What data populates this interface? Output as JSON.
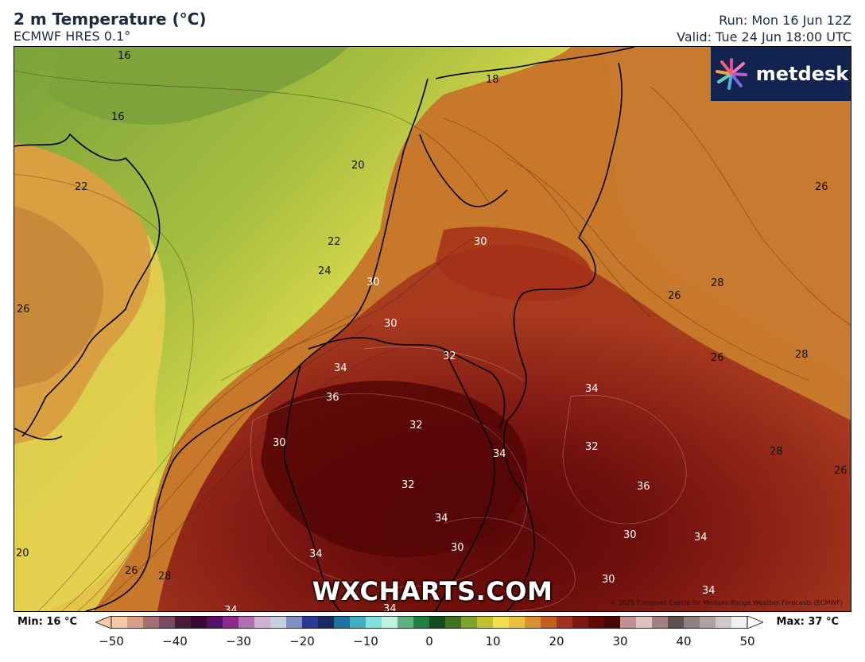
{
  "header": {
    "title": "2 m Temperature (°C)",
    "subtitle": "ECMWF HRES 0.1°",
    "run": "Run: Mon 16 Jun 12Z",
    "valid": "Valid: Tue 24 Jun 18:00 UTC"
  },
  "logo": {
    "text": "metdesk"
  },
  "watermark": "WXCHARTS.COM",
  "copyright": "© 2025 European Centre for Medium-Range Weather Forecasts (ECMWF)",
  "colorbar": {
    "min_label": "Min: 16 °C",
    "max_label": "Max: 37 °C",
    "ticks": [
      "−50",
      "−40",
      "−30",
      "−20",
      "−10",
      "0",
      "10",
      "20",
      "30",
      "40",
      "50"
    ],
    "range": [
      -50,
      50
    ],
    "colors": [
      "#f5c8a8",
      "#d9a088",
      "#a77070",
      "#7a4a60",
      "#4a1a3a",
      "#3a0a35",
      "#5a1060",
      "#8a2a8a",
      "#b070b0",
      "#d0b0d0",
      "#c8d0e0",
      "#8090c0",
      "#2a3a90",
      "#1a2a60",
      "#2070a0",
      "#40b0c0",
      "#80e0e0",
      "#c0f0e0",
      "#60b080",
      "#208040",
      "#105020",
      "#407020",
      "#80a030",
      "#c0c030",
      "#f0e050",
      "#e8c040",
      "#d89030",
      "#c06020",
      "#a03020",
      "#801810",
      "#600a08",
      "#4a0505",
      "#c09090",
      "#e0c0c0",
      "#a08080",
      "#605050",
      "#908080",
      "#b0a0a0",
      "#d0c8c8",
      "#f0f0f0"
    ]
  },
  "map": {
    "labels": [
      "16",
      "16",
      "18",
      "20",
      "22",
      "22",
      "24",
      "26",
      "30",
      "30",
      "30",
      "32",
      "34",
      "36",
      "32",
      "34",
      "30",
      "32",
      "34",
      "36",
      "32",
      "34",
      "30",
      "34",
      "34",
      "30",
      "20",
      "26",
      "28",
      "26",
      "28",
      "26",
      "28",
      "26",
      "28",
      "26",
      "30",
      "34",
      "34",
      "34"
    ]
  }
}
